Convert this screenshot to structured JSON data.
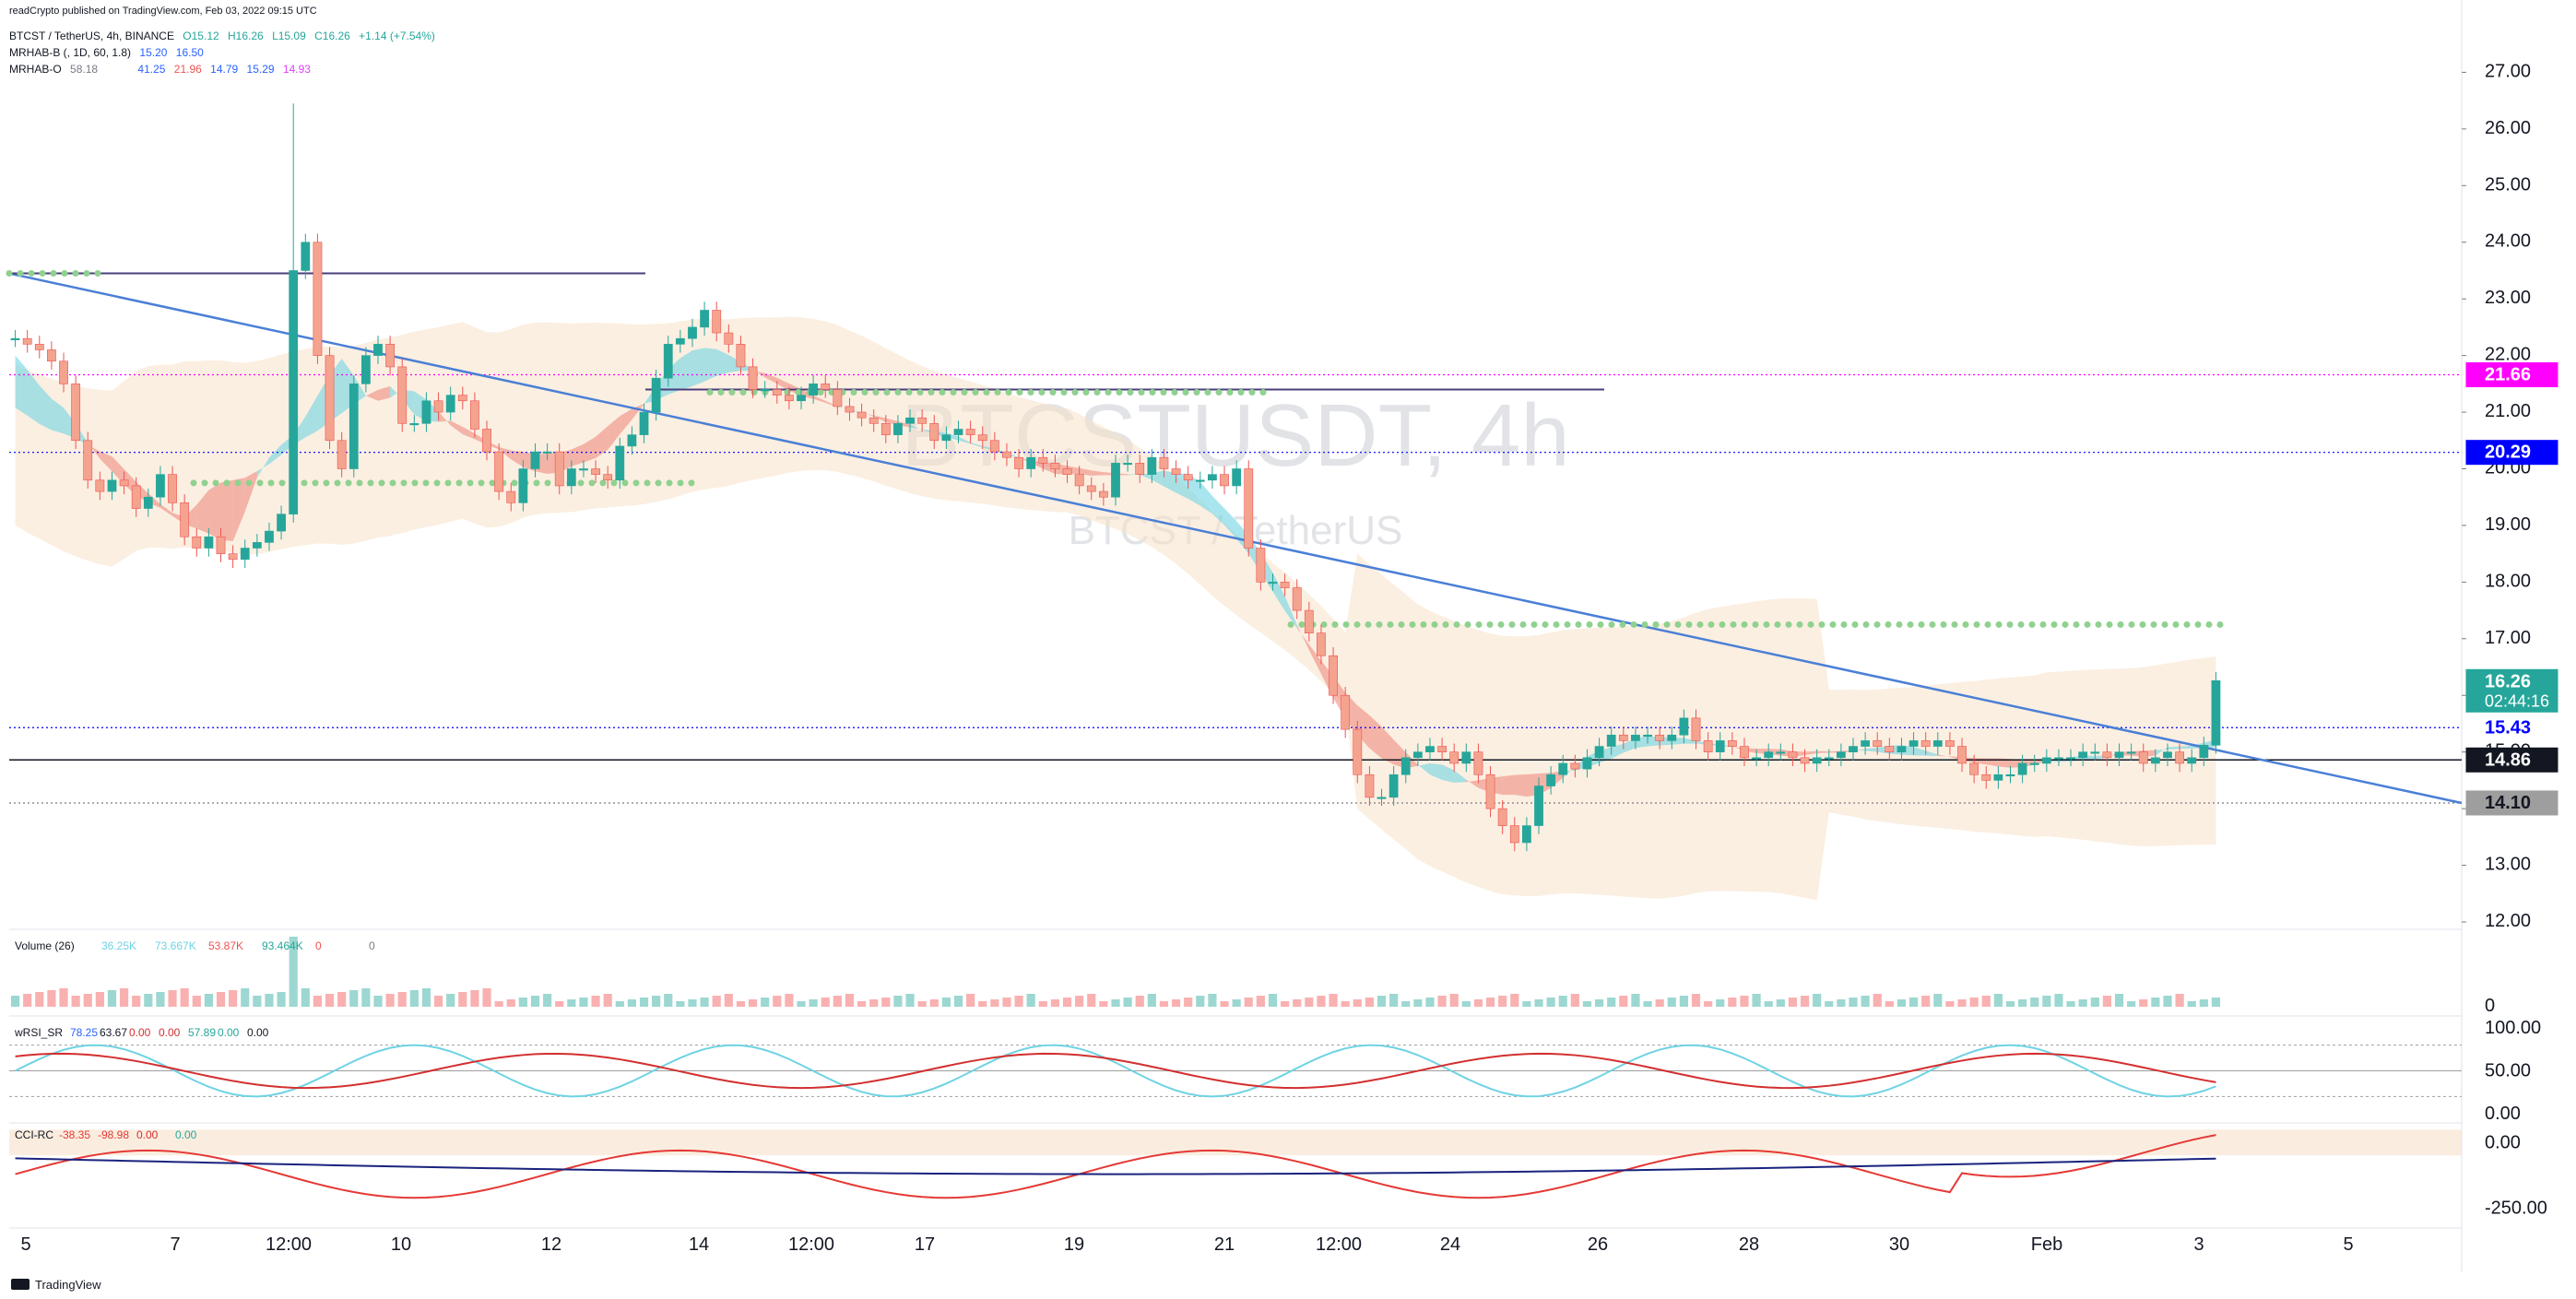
{
  "publisher": "readCrypto published on TradingView.com, Feb 03, 2022 09:15 UTC",
  "symbol_line": {
    "name": "BTCST / TetherUS, 4h, BINANCE",
    "open": "O15.12",
    "high": "H16.26",
    "low": "L15.09",
    "close": "C16.26",
    "change": "+1.14 (+7.54%)"
  },
  "indicators": [
    {
      "name": "MRHAB-B (, 1D, 60, 1.8)",
      "values": [
        "15.20",
        "16.50"
      ]
    },
    {
      "name": "MRHAB-O",
      "values": [
        "58.18",
        "41.25",
        "21.96",
        "14.79",
        "15.29",
        "14.93"
      ]
    }
  ],
  "watermark": {
    "symbol": "BTCSTUSDT, 4h",
    "description": "BTCST / TetherUS"
  },
  "price_axis": {
    "ticks": [
      "27.00",
      "26.00",
      "25.00",
      "24.00",
      "23.00",
      "22.00",
      "21.00",
      "20.00",
      "19.00",
      "18.00",
      "17.00",
      "16.00",
      "15.00",
      "14.00",
      "13.00",
      "12.00"
    ]
  },
  "price_labels": [
    {
      "value": "21.66",
      "color": "#ff00ff",
      "text_color": "#ffffff"
    },
    {
      "value": "20.29",
      "color": "#0000ff",
      "text_color": "#ffffff"
    },
    {
      "value": "16.26",
      "sub": "02:44:16",
      "color": "#26a69a",
      "text_color": "#ffffff"
    },
    {
      "value": "15.43",
      "color": "#ffffff",
      "text_color": "#0000ff"
    },
    {
      "value": "14.86",
      "color": "#131722",
      "text_color": "#ffffff"
    },
    {
      "value": "14.10",
      "color": "#9e9e9e",
      "text_color": "#131722"
    }
  ],
  "time_axis": {
    "ticks": [
      "5",
      "7",
      "12:00",
      "10",
      "12",
      "14",
      "12:00",
      "17",
      "19",
      "21",
      "12:00",
      "24",
      "26",
      "28",
      "30",
      "Feb",
      "3",
      "5"
    ]
  },
  "volume_pane": {
    "label": "Volume (26)",
    "values": [
      "36.25K",
      "73.667K",
      "53.87K",
      "93.464K",
      "0",
      "0"
    ],
    "axis": [
      "0"
    ]
  },
  "rsi_pane": {
    "label": "wRSI_SR",
    "values": [
      "78.25",
      "63.67",
      "0.00",
      "0.00",
      "57.89",
      "0.00",
      "0.00"
    ],
    "axis": [
      "100.00",
      "50.00",
      "0.00"
    ]
  },
  "cci_pane": {
    "label": "CCI-RC",
    "values": [
      "-38.35",
      "-98.98",
      "0.00",
      "0.00"
    ],
    "axis": [
      "0.00",
      "-250.00"
    ]
  },
  "footer": {
    "brand": "TradingView"
  },
  "colors": {
    "up": "#26a69a",
    "down": "#ef5350",
    "ha_up": "#f4a38f",
    "cloud": "#f7e1c9",
    "band_cyan": "#6fd3e3",
    "band_red": "#f08a80",
    "trend_line": "#4a7fd6",
    "green_dots": "#8fd18f"
  },
  "chart_data": {
    "type": "candlestick",
    "ylim": [
      12,
      27.3
    ],
    "close_series": [
      22.3,
      22.2,
      22.1,
      21.9,
      21.5,
      20.5,
      19.8,
      19.6,
      19.8,
      19.7,
      19.3,
      19.5,
      19.9,
      19.4,
      18.8,
      18.6,
      18.8,
      18.5,
      18.4,
      18.6,
      18.7,
      18.9,
      19.2,
      23.5,
      24.0,
      22.0,
      20.5,
      20.0,
      21.5,
      22.0,
      22.2,
      21.8,
      20.8,
      20.8,
      21.2,
      21.0,
      21.3,
      21.2,
      20.7,
      20.3,
      19.6,
      19.4,
      20.0,
      20.3,
      20.3,
      19.7,
      20.0,
      20.0,
      19.9,
      19.8,
      20.4,
      20.6,
      21.0,
      21.6,
      22.2,
      22.3,
      22.5,
      22.8,
      22.4,
      22.2,
      21.8,
      21.4,
      21.4,
      21.3,
      21.2,
      21.3,
      21.5,
      21.4,
      21.1,
      21.0,
      20.9,
      20.8,
      20.6,
      20.8,
      20.9,
      20.8,
      20.5,
      20.6,
      20.7,
      20.6,
      20.5,
      20.3,
      20.2,
      20.0,
      20.2,
      20.1,
      20.0,
      19.9,
      19.7,
      19.6,
      19.5,
      20.1,
      20.1,
      19.9,
      20.2,
      20.0,
      19.9,
      19.8,
      19.8,
      19.9,
      19.7,
      20.0,
      18.6,
      18.0,
      18.0,
      17.9,
      17.5,
      17.1,
      16.7,
      16.0,
      15.4,
      14.6,
      14.2,
      14.2,
      14.6,
      14.9,
      15.0,
      15.1,
      15.0,
      14.8,
      15.0,
      14.6,
      14.0,
      13.7,
      13.4,
      13.7,
      14.4,
      14.6,
      14.8,
      14.7,
      14.9,
      15.1,
      15.3,
      15.2,
      15.3,
      15.3,
      15.2,
      15.3,
      15.6,
      15.2,
      15.0,
      15.2,
      15.1,
      14.9,
      14.9,
      15.0,
      15.0,
      14.9,
      14.8,
      14.9,
      14.9,
      15.0,
      15.1,
      15.2,
      15.1,
      15.0,
      15.1,
      15.2,
      15.1,
      15.2,
      15.1,
      14.8,
      14.6,
      14.5,
      14.6,
      14.6,
      14.8,
      14.8,
      14.9,
      14.9,
      14.9,
      15.0,
      15.0,
      14.9,
      15.0,
      15.0,
      14.8,
      14.9,
      15.0,
      14.8,
      14.9,
      15.12,
      16.26
    ],
    "levels": [
      21.66,
      20.29,
      15.43,
      14.86,
      14.1
    ],
    "current_price": 16.26,
    "high_spike": 26.3,
    "rsi_range": [
      0,
      100
    ],
    "cci_range": [
      -300,
      50
    ]
  }
}
